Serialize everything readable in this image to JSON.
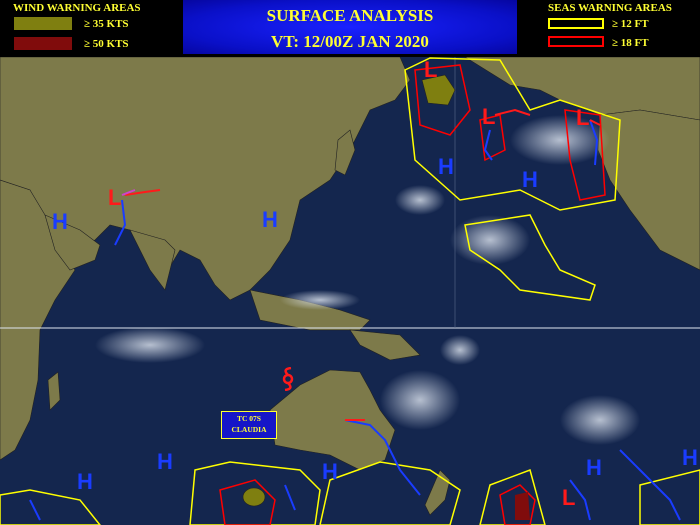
{
  "header": {
    "title": "SURFACE ANALYSIS",
    "valid_time": "VT: 12/00Z JAN 2020"
  },
  "wind_legend": {
    "title": "WIND WARNING AREAS",
    "items": [
      {
        "label": "≥ 35 KTS",
        "color": "#7f7f10"
      },
      {
        "label": "≥ 50 KTS",
        "color": "#800c0c"
      }
    ]
  },
  "seas_legend": {
    "title": "SEAS WARNING AREAS",
    "items": [
      {
        "label": "≥ 12 FT",
        "color": "#ffff00"
      },
      {
        "label": "≥ 18 FT",
        "color": "#ff0000"
      }
    ]
  },
  "map": {
    "high_symbol": "H",
    "low_symbol": "L",
    "high_color": "#1a3cff",
    "low_color": "#ff1a1a",
    "tropical_cyclone": {
      "label_line1": "TC 07S",
      "label_line2": "CLAUDIA",
      "icon": "tropical-cyclone-icon"
    }
  }
}
